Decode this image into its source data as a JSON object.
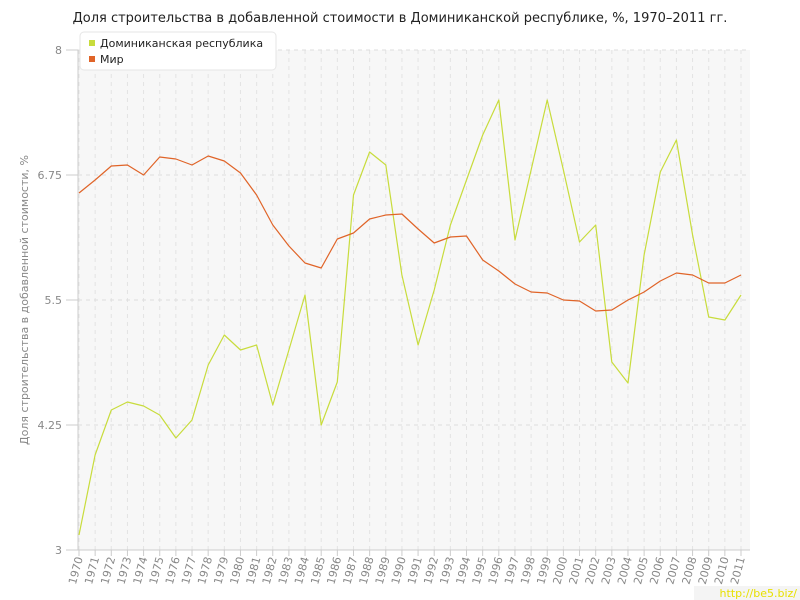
{
  "chart_data": {
    "type": "line",
    "title": "Доля строительства в добавленной стоимости в Доминиканской республике, %, 1970–2011 гг.",
    "ylabel": "Доля строительства в добавленной стоимости, %",
    "xlabel": "",
    "ylim": [
      3,
      8
    ],
    "yticks": [
      "3",
      "4.25",
      "5.5",
      "6.75",
      "8"
    ],
    "x": [
      "1970",
      "1971",
      "1972",
      "1973",
      "1974",
      "1975",
      "1976",
      "1977",
      "1978",
      "1979",
      "1980",
      "1981",
      "1982",
      "1983",
      "1984",
      "1985",
      "1986",
      "1987",
      "1988",
      "1989",
      "1990",
      "1991",
      "1992",
      "1993",
      "1994",
      "1995",
      "1996",
      "1997",
      "1998",
      "1999",
      "2000",
      "2001",
      "2002",
      "2003",
      "2004",
      "2005",
      "2006",
      "2007",
      "2008",
      "2009",
      "2010",
      "2011"
    ],
    "grid": true,
    "legend_position": "top-left",
    "series": [
      {
        "name": "Доминиканская республика",
        "color": "#c8dc3c",
        "values": [
          3.15,
          3.95,
          4.4,
          4.48,
          4.44,
          4.35,
          4.12,
          4.3,
          4.85,
          5.15,
          5.0,
          5.05,
          4.45,
          5.0,
          5.55,
          4.25,
          4.68,
          6.55,
          6.98,
          6.85,
          5.75,
          5.05,
          5.6,
          6.25,
          6.7,
          7.15,
          7.5,
          6.1,
          6.8,
          7.5,
          6.8,
          6.08,
          6.25,
          4.88,
          4.67,
          5.95,
          6.78,
          7.1,
          6.15,
          5.33,
          5.3,
          5.55
        ]
      },
      {
        "name": "Мир",
        "color": "#e06428",
        "values": [
          6.57,
          6.7,
          6.84,
          6.85,
          6.75,
          6.93,
          6.91,
          6.85,
          6.94,
          6.89,
          6.77,
          6.55,
          6.25,
          6.04,
          5.87,
          5.82,
          6.11,
          6.17,
          6.31,
          6.35,
          6.36,
          6.21,
          6.07,
          6.13,
          6.14,
          5.9,
          5.79,
          5.66,
          5.58,
          5.57,
          5.5,
          5.49,
          5.39,
          5.4,
          5.5,
          5.58,
          5.69,
          5.77,
          5.75,
          5.67,
          5.67,
          5.75
        ]
      }
    ]
  },
  "watermark": "http://be5.biz/"
}
